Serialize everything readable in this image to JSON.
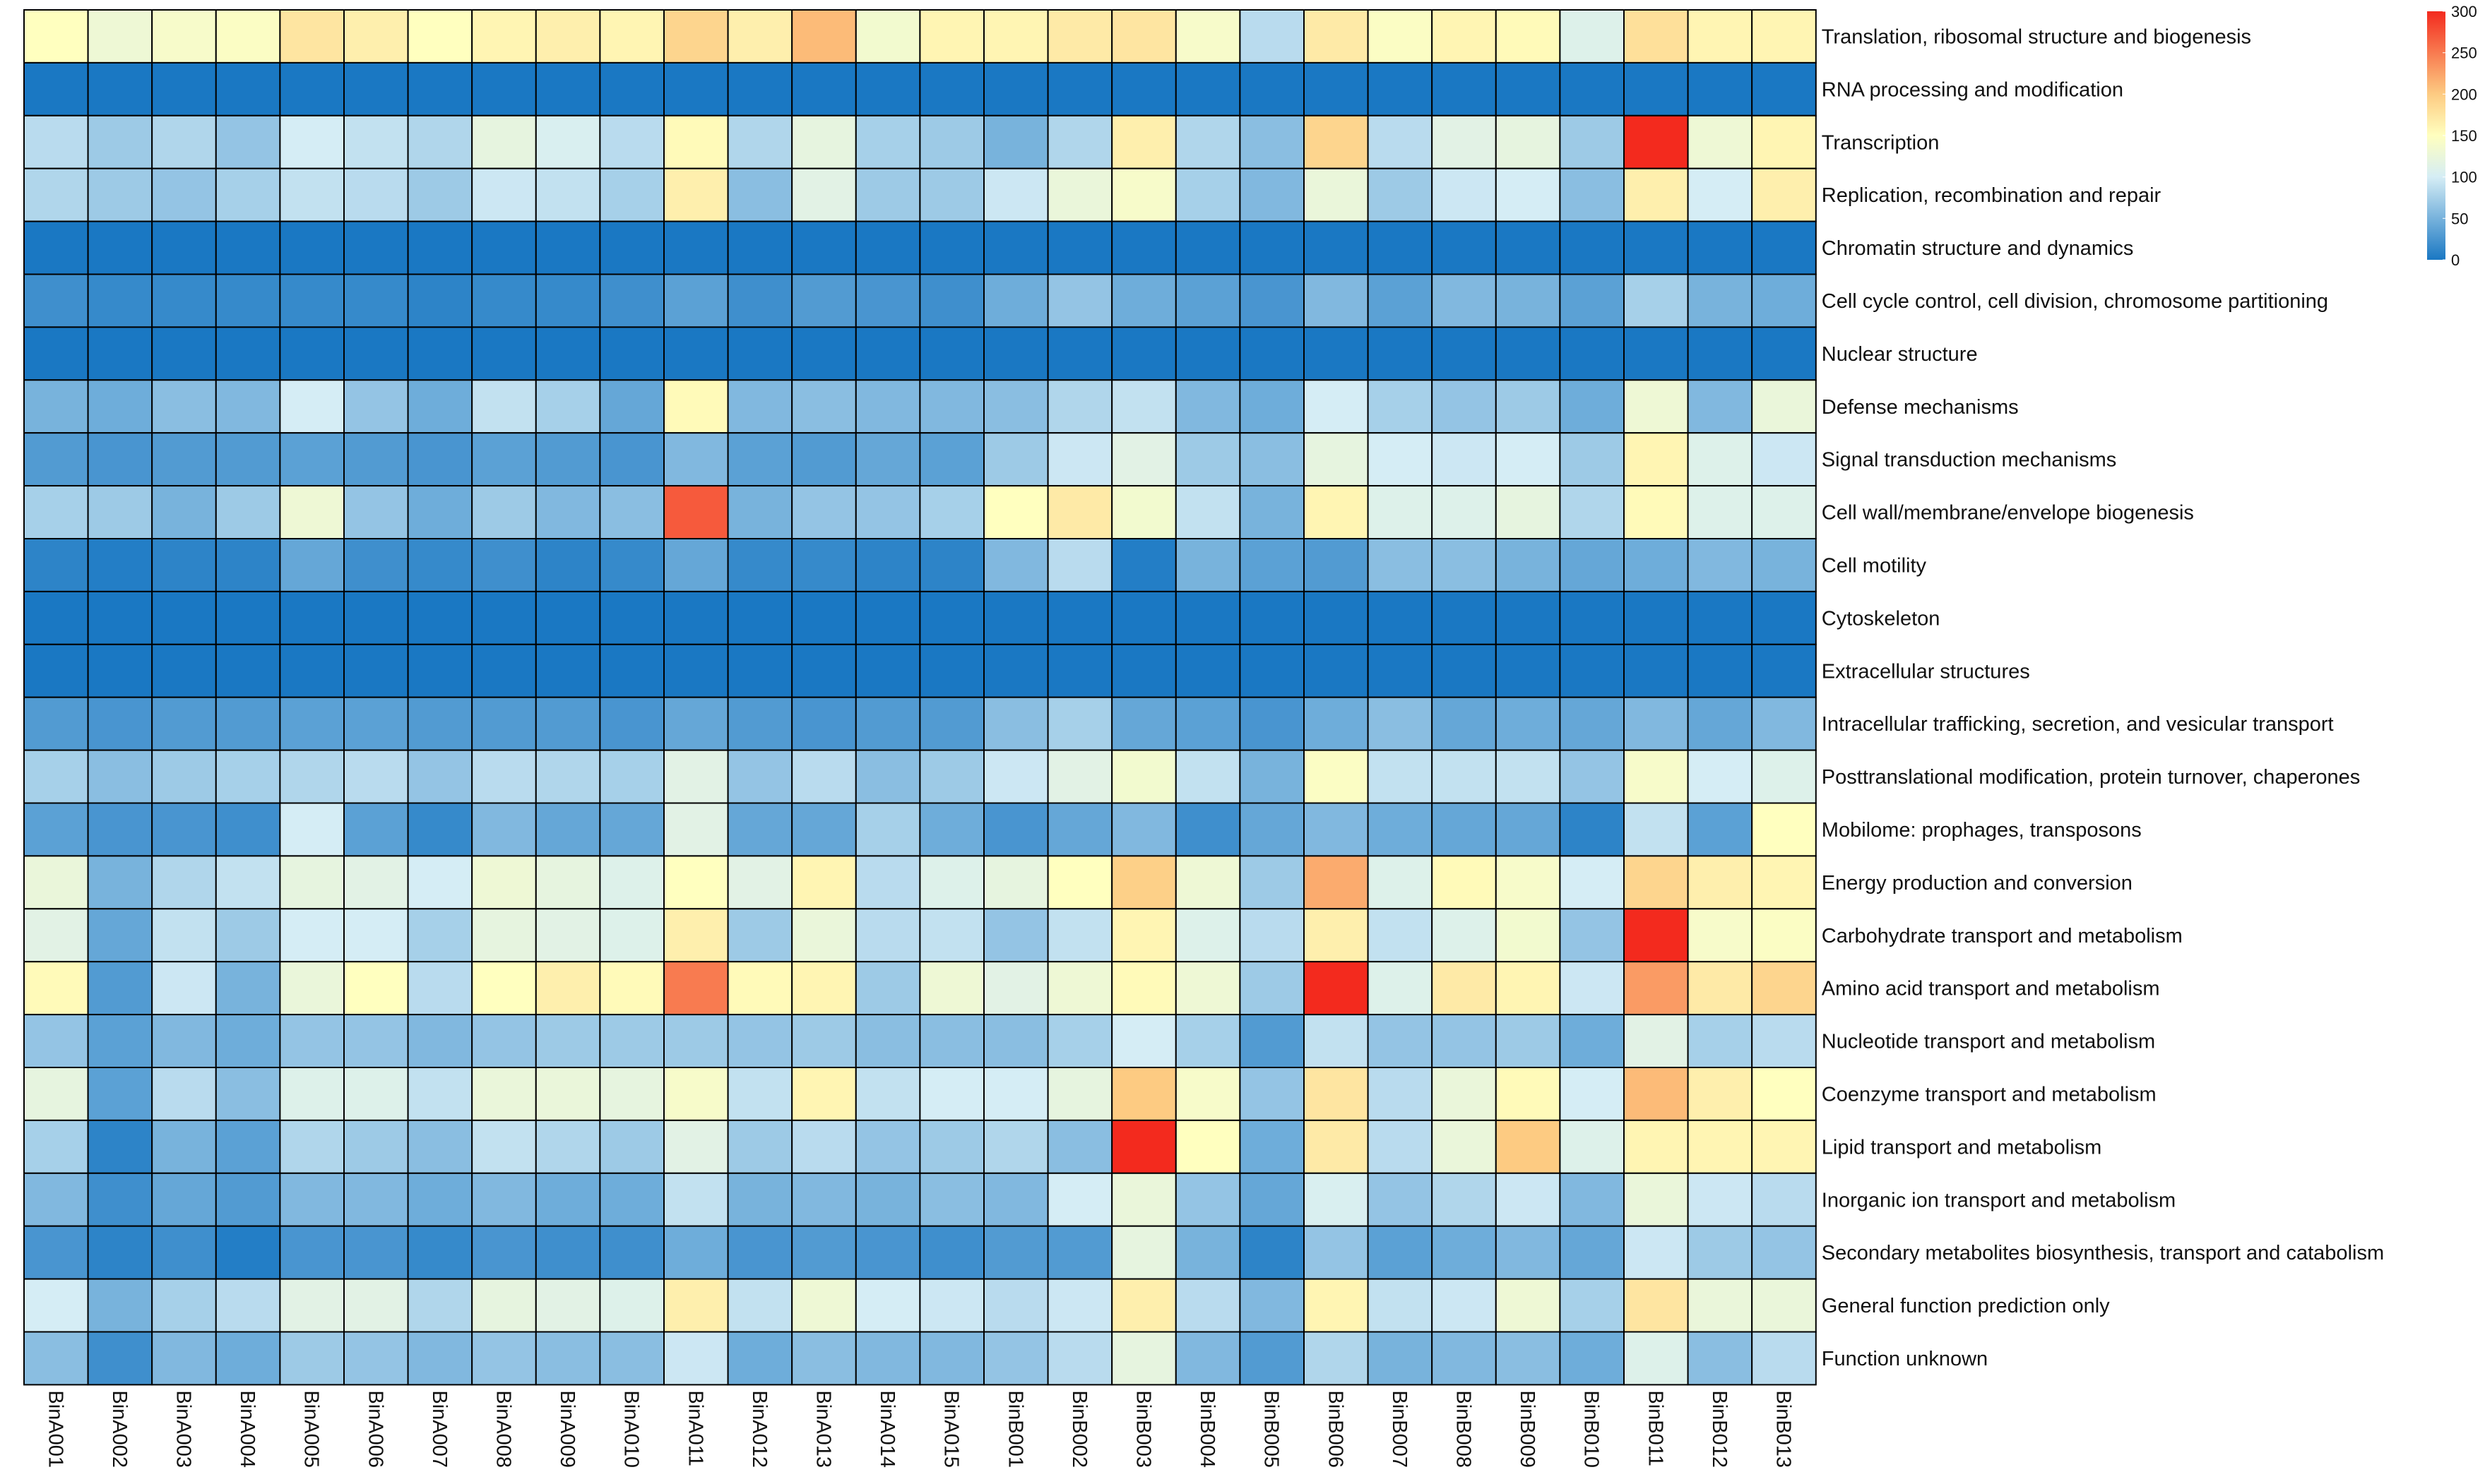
{
  "chart_data": {
    "type": "heatmap",
    "title": "",
    "columns": [
      "BinA001",
      "BinA002",
      "BinA003",
      "BinA004",
      "BinA005",
      "BinA006",
      "BinA007",
      "BinA008",
      "BinA009",
      "BinA010",
      "BinA011",
      "BinA012",
      "BinA013",
      "BinA014",
      "BinA015",
      "BinB001",
      "BinB002",
      "BinB003",
      "BinB004",
      "BinB005",
      "BinB006",
      "BinB007",
      "BinB008",
      "BinB009",
      "BinB010",
      "BinB011",
      "BinB012",
      "BinB013"
    ],
    "rows": [
      "Translation, ribosomal structure and biogenesis",
      "RNA processing and modification",
      "Transcription",
      "Replication, recombination and repair",
      "Chromatin structure and dynamics",
      "Cell cycle control, cell division, chromosome partitioning",
      "Nuclear structure",
      "Defense mechanisms",
      "Signal transduction mechanisms",
      "Cell wall/membrane/envelope biogenesis",
      "Cell motility",
      "Cytoskeleton",
      "Extracellular structures",
      "Intracellular trafficking, secretion, and vesicular transport",
      "Posttranslational modification, protein turnover, chaperones",
      "Mobilome: prophages, transposons",
      "Energy production and conversion",
      "Carbohydrate transport and metabolism",
      "Amino acid transport and metabolism",
      "Nucleotide transport and metabolism",
      "Coenzyme transport and metabolism",
      "Lipid transport and metabolism",
      "Inorganic ion transport and metabolism",
      "Secondary metabolites biosynthesis, transport and catabolism",
      "General function prediction only",
      "Function unknown"
    ],
    "values": [
      [
        150,
        130,
        140,
        145,
        175,
        165,
        150,
        160,
        165,
        160,
        190,
        165,
        210,
        135,
        160,
        160,
        170,
        175,
        140,
        85,
        170,
        145,
        160,
        155,
        110,
        180,
        160,
        160
      ],
      [
        0,
        0,
        0,
        0,
        0,
        0,
        0,
        0,
        0,
        0,
        0,
        0,
        0,
        0,
        0,
        0,
        0,
        0,
        0,
        0,
        0,
        0,
        0,
        0,
        0,
        0,
        0,
        0
      ],
      [
        85,
        70,
        80,
        65,
        100,
        90,
        80,
        120,
        105,
        85,
        155,
        80,
        120,
        75,
        70,
        50,
        80,
        165,
        80,
        60,
        190,
        85,
        115,
        120,
        70,
        300,
        130,
        160
      ],
      [
        80,
        70,
        65,
        75,
        90,
        85,
        70,
        95,
        90,
        75,
        165,
        60,
        115,
        70,
        70,
        95,
        125,
        140,
        75,
        55,
        125,
        70,
        95,
        100,
        60,
        165,
        100,
        165
      ],
      [
        0,
        0,
        0,
        0,
        0,
        0,
        0,
        0,
        0,
        0,
        0,
        0,
        0,
        0,
        0,
        0,
        0,
        0,
        0,
        0,
        0,
        0,
        0,
        0,
        0,
        0,
        0,
        0
      ],
      [
        20,
        15,
        15,
        15,
        15,
        15,
        10,
        15,
        15,
        20,
        35,
        20,
        30,
        25,
        20,
        45,
        65,
        45,
        35,
        25,
        55,
        35,
        55,
        50,
        35,
        75,
        50,
        45
      ],
      [
        0,
        0,
        0,
        0,
        0,
        0,
        0,
        0,
        0,
        0,
        0,
        0,
        0,
        0,
        0,
        0,
        0,
        0,
        0,
        0,
        0,
        0,
        0,
        0,
        0,
        0,
        0,
        0
      ],
      [
        50,
        45,
        60,
        55,
        100,
        65,
        45,
        90,
        75,
        40,
        155,
        55,
        60,
        55,
        55,
        60,
        80,
        90,
        55,
        45,
        100,
        75,
        65,
        70,
        45,
        130,
        55,
        125
      ],
      [
        30,
        25,
        30,
        30,
        35,
        30,
        25,
        35,
        30,
        25,
        55,
        35,
        30,
        40,
        35,
        70,
        95,
        115,
        70,
        60,
        120,
        100,
        95,
        100,
        70,
        160,
        110,
        95
      ],
      [
        75,
        70,
        50,
        70,
        130,
        65,
        45,
        70,
        55,
        60,
        270,
        50,
        65,
        65,
        75,
        150,
        170,
        135,
        90,
        50,
        160,
        110,
        110,
        120,
        80,
        155,
        110,
        110
      ],
      [
        10,
        5,
        10,
        10,
        40,
        20,
        15,
        20,
        10,
        15,
        40,
        15,
        15,
        10,
        10,
        55,
        85,
        5,
        50,
        35,
        30,
        60,
        60,
        50,
        40,
        45,
        55,
        50
      ],
      [
        0,
        0,
        0,
        0,
        0,
        0,
        0,
        0,
        0,
        0,
        0,
        0,
        0,
        0,
        0,
        0,
        0,
        0,
        0,
        0,
        0,
        0,
        0,
        0,
        0,
        0,
        0,
        0
      ],
      [
        0,
        0,
        0,
        0,
        0,
        0,
        0,
        0,
        0,
        0,
        0,
        0,
        0,
        0,
        0,
        0,
        0,
        0,
        0,
        0,
        0,
        0,
        0,
        0,
        0,
        0,
        0,
        0
      ],
      [
        30,
        25,
        30,
        30,
        35,
        35,
        30,
        30,
        30,
        25,
        40,
        30,
        25,
        30,
        30,
        60,
        75,
        40,
        35,
        25,
        45,
        60,
        40,
        45,
        40,
        55,
        40,
        55
      ],
      [
        75,
        60,
        70,
        75,
        80,
        85,
        65,
        85,
        80,
        75,
        115,
        65,
        85,
        60,
        70,
        95,
        115,
        135,
        90,
        50,
        145,
        90,
        90,
        90,
        65,
        140,
        100,
        110
      ],
      [
        35,
        25,
        25,
        20,
        100,
        35,
        15,
        55,
        40,
        40,
        115,
        40,
        40,
        75,
        45,
        25,
        40,
        55,
        20,
        40,
        55,
        45,
        40,
        40,
        10,
        90,
        35,
        150
      ],
      [
        125,
        50,
        80,
        90,
        120,
        115,
        100,
        130,
        120,
        110,
        150,
        115,
        160,
        85,
        110,
        120,
        150,
        195,
        130,
        70,
        220,
        110,
        155,
        140,
        100,
        190,
        165,
        160
      ],
      [
        115,
        40,
        90,
        70,
        100,
        100,
        75,
        120,
        115,
        110,
        165,
        70,
        125,
        85,
        90,
        65,
        90,
        160,
        110,
        85,
        165,
        90,
        110,
        135,
        65,
        300,
        140,
        145
      ],
      [
        155,
        30,
        95,
        50,
        125,
        150,
        85,
        150,
        165,
        155,
        250,
        155,
        160,
        70,
        130,
        115,
        130,
        155,
        130,
        70,
        300,
        110,
        170,
        160,
        95,
        230,
        170,
        190
      ],
      [
        65,
        35,
        55,
        45,
        65,
        65,
        55,
        65,
        70,
        70,
        70,
        65,
        70,
        60,
        60,
        60,
        75,
        100,
        75,
        30,
        90,
        65,
        65,
        70,
        45,
        115,
        75,
        85
      ],
      [
        120,
        35,
        85,
        60,
        110,
        110,
        90,
        125,
        125,
        120,
        140,
        90,
        160,
        90,
        100,
        100,
        120,
        200,
        140,
        65,
        175,
        85,
        125,
        155,
        100,
        210,
        165,
        150
      ],
      [
        75,
        10,
        50,
        35,
        80,
        70,
        60,
        90,
        80,
        70,
        115,
        70,
        85,
        65,
        70,
        80,
        60,
        300,
        150,
        45,
        170,
        85,
        125,
        200,
        110,
        160,
        160,
        160
      ],
      [
        55,
        20,
        40,
        30,
        55,
        55,
        45,
        55,
        45,
        45,
        90,
        50,
        55,
        50,
        60,
        55,
        100,
        125,
        65,
        40,
        105,
        65,
        80,
        95,
        55,
        125,
        95,
        85
      ],
      [
        25,
        10,
        20,
        5,
        25,
        25,
        15,
        25,
        20,
        20,
        45,
        25,
        30,
        25,
        20,
        30,
        30,
        120,
        50,
        10,
        65,
        35,
        45,
        55,
        40,
        95,
        70,
        65
      ],
      [
        100,
        50,
        75,
        85,
        115,
        115,
        80,
        120,
        115,
        110,
        165,
        90,
        130,
        100,
        95,
        85,
        95,
        165,
        85,
        55,
        160,
        90,
        95,
        130,
        75,
        175,
        125,
        125
      ],
      [
        60,
        20,
        55,
        45,
        70,
        65,
        55,
        65,
        60,
        60,
        95,
        45,
        60,
        55,
        55,
        65,
        85,
        120,
        55,
        30,
        80,
        50,
        55,
        60,
        45,
        110,
        60,
        85
      ]
    ],
    "color_scale": {
      "min": 0,
      "max": 300,
      "stops": [
        {
          "value": 0,
          "color": "#1a78c3"
        },
        {
          "value": 100,
          "color": "#d5edf5"
        },
        {
          "value": 150,
          "color": "#ffffbf"
        },
        {
          "value": 200,
          "color": "#fdcb82"
        },
        {
          "value": 300,
          "color": "#f32a1e"
        }
      ],
      "ticks": [
        "0",
        "50",
        "100",
        "150",
        "200",
        "250",
        "300"
      ]
    },
    "legend_position": "top-right",
    "cell_border_color": "#000000"
  }
}
